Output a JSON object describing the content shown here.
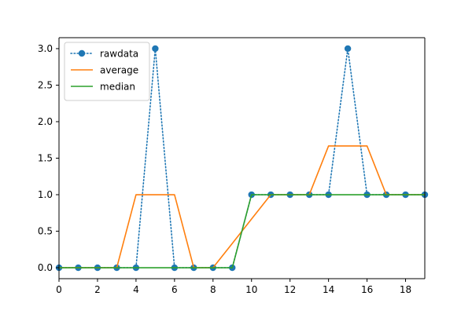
{
  "chart_data": {
    "type": "line",
    "title": "",
    "xlabel": "",
    "ylabel": "",
    "xlim": [
      0,
      19
    ],
    "ylim": [
      -0.15,
      3.15
    ],
    "x": [
      0,
      1,
      2,
      3,
      4,
      5,
      6,
      7,
      8,
      9,
      10,
      11,
      12,
      13,
      14,
      15,
      16,
      17,
      18,
      19
    ],
    "xticks": [
      0,
      2,
      4,
      6,
      8,
      10,
      12,
      14,
      16,
      18
    ],
    "xtick_labels": [
      "0",
      "2",
      "4",
      "6",
      "8",
      "10",
      "12",
      "14",
      "16",
      "18"
    ],
    "yticks": [
      0.0,
      0.5,
      1.0,
      1.5,
      2.0,
      2.5,
      3.0
    ],
    "ytick_labels": [
      "0.0",
      "0.5",
      "1.0",
      "1.5",
      "2.0",
      "2.5",
      "3.0"
    ],
    "grid": false,
    "legend": {
      "position": "top-left",
      "entries": [
        "rawdata",
        "average",
        "median"
      ]
    },
    "series": [
      {
        "name": "rawdata",
        "color": "#1f77b4",
        "style": "dotted-with-markers",
        "values": [
          0,
          0,
          0,
          0,
          0,
          3,
          0,
          0,
          0,
          0,
          1,
          1,
          1,
          1,
          1,
          3,
          1,
          1,
          1,
          1
        ]
      },
      {
        "name": "average",
        "color": "#ff7f0e",
        "style": "solid",
        "x": [
          0,
          1,
          2,
          3,
          4,
          5,
          6,
          7,
          8,
          9,
          10,
          11,
          12,
          13,
          14,
          15,
          16,
          17,
          18,
          19
        ],
        "values": [
          0,
          0,
          0,
          0,
          1,
          1,
          1,
          0,
          0,
          0.333,
          0.667,
          1,
          1,
          1,
          1.667,
          1.667,
          1.667,
          1,
          1,
          1
        ]
      },
      {
        "name": "median",
        "color": "#2ca02c",
        "style": "solid",
        "values": [
          0,
          0,
          0,
          0,
          0,
          0,
          0,
          0,
          0,
          0,
          1,
          1,
          1,
          1,
          1,
          1,
          1,
          1,
          1,
          1
        ]
      }
    ]
  }
}
